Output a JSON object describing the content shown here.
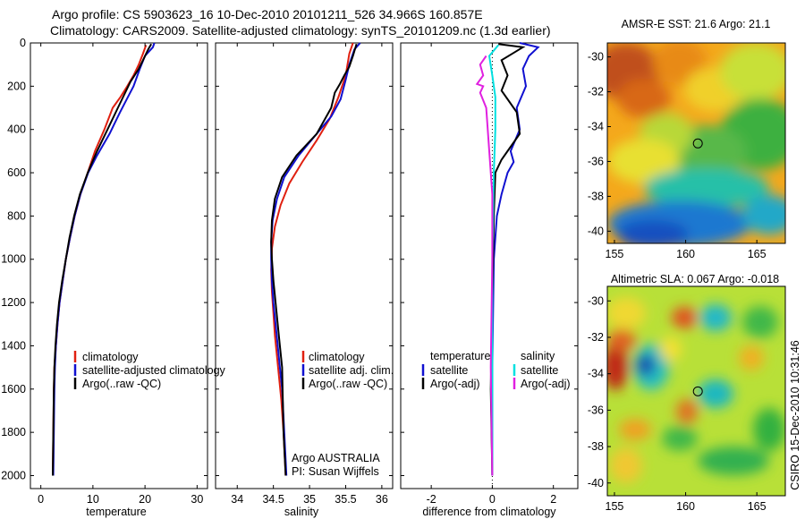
{
  "header": {
    "line1": "Argo profile: CS 5903623_16 10-Dec-2010 20101211_526 34.966S 160.857E",
    "line2": "Climatology: CARS2009. Satellite-adjusted climatology: synTS_20101209.nc (1.3d earlier)"
  },
  "credit": "CSIRO 15-Dec-2010 10:31:46",
  "colors": {
    "climatology": "#e02010",
    "satellite": "#1010d0",
    "argo": "#000000",
    "salinity_satellite": "#00e0e0",
    "salinity_argo": "#e020e0"
  },
  "chart_data": [
    {
      "type": "line",
      "name": "temperature-profile",
      "xlabel": "temperature",
      "xlim": [
        -2,
        32
      ],
      "ylim": [
        2060,
        0
      ],
      "xticks": [
        0,
        10,
        20,
        30
      ],
      "yticks": [
        0,
        200,
        400,
        600,
        800,
        1000,
        1200,
        1400,
        1600,
        1800,
        2000
      ],
      "legend": [
        "climatology",
        "satellite-adjusted climatology",
        "Argo(..raw -QC)"
      ],
      "series": [
        {
          "name": "climatology",
          "color": "#e02010",
          "x": [
            20.2,
            19.6,
            18.8,
            17.8,
            16.6,
            15.3,
            13.8,
            12.2,
            10.4,
            9.0,
            7.6,
            6.5,
            5.6,
            4.8,
            4.2,
            3.6,
            3.2,
            2.9,
            2.6,
            2.5,
            2.4,
            2.3
          ],
          "y": [
            10,
            50,
            100,
            150,
            200,
            250,
            300,
            400,
            500,
            600,
            700,
            800,
            900,
            1000,
            1100,
            1200,
            1300,
            1400,
            1500,
            1600,
            1800,
            2000
          ]
        },
        {
          "name": "satellite-adjusted climatology",
          "color": "#1010d0",
          "x": [
            21.8,
            21.5,
            20.0,
            19.0,
            17.8,
            16.5,
            15.2,
            13.2,
            10.8,
            9.1,
            7.6,
            6.5,
            5.6,
            4.8,
            4.2,
            3.6,
            3.2,
            2.9,
            2.7,
            2.6,
            2.5,
            2.4
          ],
          "y": [
            0,
            20,
            60,
            120,
            200,
            260,
            320,
            420,
            520,
            600,
            700,
            800,
            900,
            1000,
            1100,
            1200,
            1300,
            1400,
            1500,
            1600,
            1800,
            2000
          ]
        },
        {
          "name": "Argo(..raw -QC)",
          "color": "#000000",
          "x": [
            21.2,
            20.6,
            19.8,
            18.8,
            17.2,
            16.0,
            14.8,
            12.8,
            10.8,
            9.0,
            7.5,
            6.4,
            5.5,
            4.8,
            4.1,
            3.5,
            3.1,
            2.8,
            2.6,
            2.5,
            2.4,
            2.3
          ],
          "y": [
            5,
            30,
            70,
            120,
            180,
            240,
            300,
            400,
            500,
            600,
            700,
            800,
            900,
            1000,
            1100,
            1200,
            1300,
            1400,
            1500,
            1600,
            1800,
            2000
          ]
        }
      ]
    },
    {
      "type": "line",
      "name": "salinity-profile",
      "xlabel": "salinity",
      "xlim": [
        33.7,
        36.15
      ],
      "ylim": [
        2060,
        0
      ],
      "xticks": [
        34,
        34.5,
        35,
        35.5,
        36
      ],
      "xticklabels": [
        "34",
        "34.5",
        "35",
        "35.5",
        "36"
      ],
      "legend": [
        "climatology",
        "satellite adj. clim.",
        "Argo(..raw -QC)"
      ],
      "annotation": [
        "Argo AUSTRALIA",
        "PI: Susan Wijffels"
      ],
      "series": [
        {
          "name": "climatology",
          "color": "#e02010",
          "x": [
            35.6,
            35.55,
            35.5,
            35.4,
            35.28,
            35.1,
            34.9,
            34.72,
            34.6,
            34.52,
            34.48,
            34.47,
            34.48,
            34.5,
            34.52,
            34.55,
            34.58,
            34.61,
            34.64,
            34.67
          ],
          "y": [
            0,
            50,
            150,
            250,
            350,
            450,
            550,
            650,
            750,
            850,
            950,
            1050,
            1150,
            1250,
            1350,
            1450,
            1550,
            1650,
            1800,
            2000
          ]
        },
        {
          "name": "satellite adj. clim.",
          "color": "#1010d0",
          "x": [
            35.7,
            35.62,
            35.55,
            35.5,
            35.43,
            35.3,
            35.1,
            34.85,
            34.65,
            34.55,
            34.49,
            34.47,
            34.47,
            34.48,
            34.5,
            34.53,
            34.56,
            34.59,
            34.62,
            34.65,
            34.68
          ],
          "y": [
            0,
            30,
            100,
            170,
            260,
            340,
            420,
            520,
            620,
            720,
            820,
            920,
            1000,
            1100,
            1200,
            1300,
            1400,
            1500,
            1600,
            1800,
            2000
          ]
        },
        {
          "name": "Argo(..raw -QC)",
          "color": "#000000",
          "x": [
            35.65,
            35.6,
            35.55,
            35.48,
            35.42,
            35.35,
            35.3,
            35.1,
            34.82,
            34.62,
            34.52,
            34.48,
            34.47,
            34.48,
            34.5,
            34.53,
            34.56,
            34.59,
            34.62,
            34.64,
            34.67
          ],
          "y": [
            5,
            60,
            110,
            150,
            190,
            230,
            300,
            420,
            520,
            620,
            720,
            820,
            920,
            1000,
            1100,
            1200,
            1300,
            1400,
            1500,
            1800,
            2000
          ]
        }
      ]
    },
    {
      "type": "line",
      "name": "difference-profile",
      "xlabel": "difference from climatology",
      "xlim": [
        -3,
        2.8
      ],
      "ylim": [
        2060,
        0
      ],
      "xticks": [
        -2,
        0,
        2
      ],
      "legend_left_title": "temperature",
      "legend_left": [
        "satellite",
        "Argo(-adj)"
      ],
      "legend_right_title": "salinity",
      "legend_right": [
        "satellite",
        "Argo(-adj)"
      ],
      "series": [
        {
          "name": "temperature satellite",
          "color": "#1010d0",
          "x": [
            0.9,
            1.5,
            1.2,
            1.0,
            1.1,
            0.8,
            0.9,
            0.6,
            0.7,
            0.5,
            0.3,
            0.15,
            0.05,
            0.0,
            0.0
          ],
          "y": [
            0,
            20,
            60,
            120,
            200,
            300,
            400,
            500,
            550,
            600,
            700,
            800,
            1000,
            1500,
            2000
          ]
        },
        {
          "name": "temperature Argo(-adj)",
          "color": "#000000",
          "x": [
            0.2,
            1.0,
            0.3,
            0.5,
            0.3,
            0.8,
            0.9,
            0.6,
            0.3,
            0.1,
            0.05,
            0.0,
            -0.05,
            0.0
          ],
          "y": [
            5,
            20,
            80,
            150,
            220,
            320,
            420,
            480,
            540,
            600,
            800,
            1200,
            1600,
            2000
          ]
        },
        {
          "name": "salinity satellite",
          "color": "#00e0e0",
          "x": [
            0.2,
            -0.1,
            0.0,
            0.1,
            0.1,
            0.05,
            0.0,
            0.0,
            0.0
          ],
          "y": [
            10,
            60,
            150,
            250,
            400,
            600,
            1000,
            1500,
            2000
          ]
        },
        {
          "name": "salinity Argo(-adj)",
          "color": "#e020e0",
          "x": [
            -0.2,
            -0.4,
            -0.3,
            -0.5,
            -0.3,
            -0.4,
            -0.2,
            -0.1,
            0.0,
            0.0,
            -0.05,
            0.0
          ],
          "y": [
            60,
            100,
            150,
            190,
            200,
            230,
            300,
            500,
            700,
            1000,
            1500,
            2000
          ]
        }
      ]
    },
    {
      "type": "heatmap",
      "name": "sst-map",
      "title": "AMSR-E SST: 21.6 Argo: 21.1",
      "xlim": [
        154.5,
        167
      ],
      "ylim": [
        -40.7,
        -29.2
      ],
      "xticks": [
        155,
        160,
        165
      ],
      "yticks": [
        -30,
        -32,
        -34,
        -36,
        -38,
        -40
      ],
      "float_position": [
        160.857,
        -34.966
      ],
      "description": "Sea surface temperature field (warm north-west, cool south)"
    },
    {
      "type": "heatmap",
      "name": "sla-map",
      "title": "Altimetric SLA: 0.067 Argo: -0.018",
      "xlim": [
        154.5,
        167
      ],
      "ylim": [
        -40.7,
        -29.2
      ],
      "xticks": [
        155,
        160,
        165
      ],
      "yticks": [
        -30,
        -32,
        -34,
        -36,
        -38,
        -40
      ],
      "float_position": [
        160.857,
        -34.966
      ],
      "description": "Sea level anomaly field with mesoscale eddies"
    }
  ]
}
